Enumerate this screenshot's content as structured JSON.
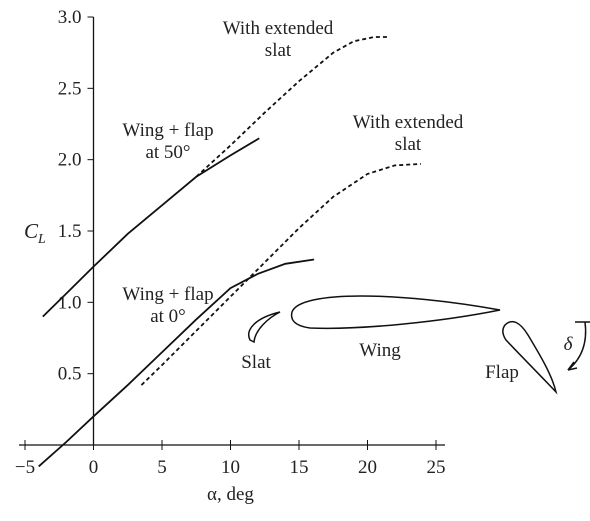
{
  "chart_data": {
    "type": "line",
    "x_label": "α, deg",
    "y_label": {
      "main": "C",
      "sub": "L"
    },
    "xlim": [
      -5,
      25
    ],
    "ylim": [
      0,
      3.0
    ],
    "xticks": [
      {
        "value": -5,
        "label": "−5"
      },
      0,
      5,
      10,
      15,
      20,
      25
    ],
    "yticks": [
      0.5,
      {
        "value": 1.0,
        "label": "1.0"
      },
      1.5,
      {
        "value": 2.0,
        "label": "2.0"
      },
      2.5,
      {
        "value": 3.0,
        "label": "3.0"
      }
    ],
    "series": [
      {
        "style": "solid",
        "color": "#111111",
        "x": [
          -3.7,
          -2,
          0,
          2.5,
          5,
          7.5,
          10,
          12.1
        ],
        "values": [
          0.9,
          1.06,
          1.25,
          1.48,
          1.68,
          1.88,
          2.03,
          2.15
        ]
      },
      {
        "style": "dashed",
        "color": "#111111",
        "x": [
          7.5,
          10,
          12.5,
          15,
          17.5,
          19,
          20.5,
          21.6
        ],
        "values": [
          1.88,
          2.1,
          2.33,
          2.55,
          2.75,
          2.83,
          2.86,
          2.86
        ]
      },
      {
        "style": "solid",
        "color": "#111111",
        "x": [
          -4,
          -2,
          0,
          2.5,
          5,
          7.5,
          10,
          12,
          14,
          16.1
        ],
        "values": [
          -0.15,
          0.02,
          0.2,
          0.42,
          0.65,
          0.88,
          1.1,
          1.2,
          1.27,
          1.3
        ]
      },
      {
        "style": "dashed",
        "color": "#111111",
        "x": [
          3.5,
          5,
          7.5,
          10,
          12.5,
          15,
          17.5,
          20,
          22,
          23.9
        ],
        "values": [
          0.42,
          0.56,
          0.8,
          1.04,
          1.28,
          1.52,
          1.74,
          1.9,
          1.96,
          1.97
        ]
      }
    ],
    "annotations": [
      {
        "lines": [
          "With extended",
          "slat"
        ]
      },
      {
        "lines": [
          "With extended",
          "slat"
        ]
      },
      {
        "lines": [
          "Wing + flap",
          "at 50°"
        ]
      },
      {
        "lines": [
          "Wing + flap",
          "at 0°"
        ]
      },
      {
        "lines": [
          "Slat"
        ]
      },
      {
        "lines": [
          "Wing"
        ]
      },
      {
        "lines": [
          "Flap"
        ]
      },
      {
        "lines": [
          "δ"
        ]
      }
    ]
  }
}
